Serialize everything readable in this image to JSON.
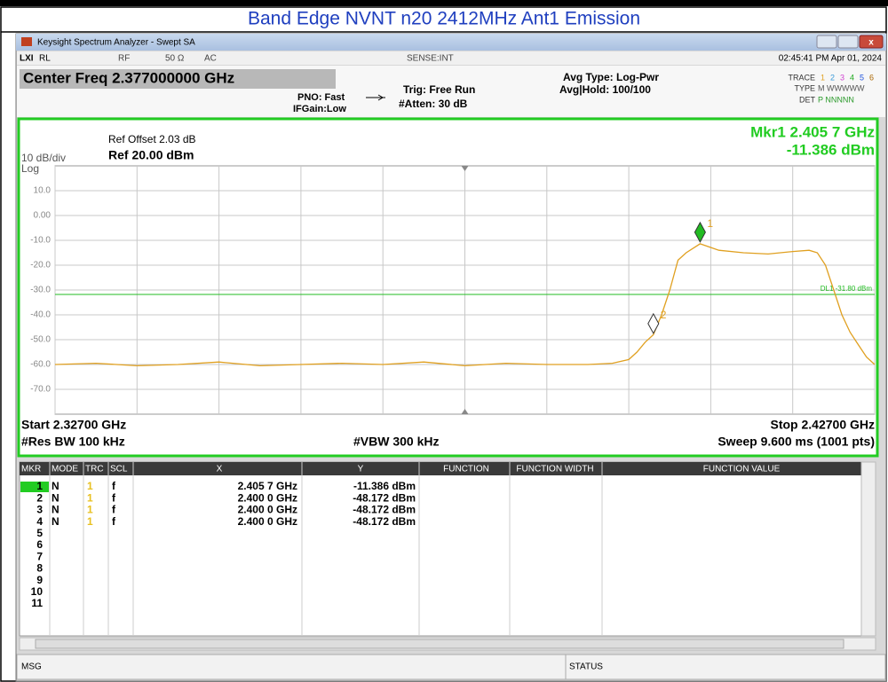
{
  "header": {
    "title": "Band Edge NVNT n20 2412MHz Ant1 Emission"
  },
  "window": {
    "title": "Keysight Spectrum Analyzer - Swept SA"
  },
  "status_bar": {
    "rl": "RL",
    "rf": "RF",
    "impedance": "50 Ω",
    "coupling": "AC",
    "sense": "SENSE:INT",
    "datetime": "02:45:41 PM Apr 01, 2024"
  },
  "settings": {
    "center_freq": "Center Freq 2.377000000 GHz",
    "pno": "PNO: Fast",
    "ifgain": "IFGain:Low",
    "trig": "Trig: Free Run",
    "atten": "#Atten: 30 dB",
    "avg_type": "Avg Type: Log-Pwr",
    "avg_hold": "Avg|Hold: 100/100",
    "trace_label": "TRACE",
    "trace_nums": [
      "1",
      "2",
      "3",
      "4",
      "5",
      "6"
    ],
    "type_label": "TYPE",
    "type_value": "M WWWWW",
    "det_label": "DET",
    "det_value": "P NNNNN"
  },
  "chart_data": {
    "type": "line",
    "ref_offset": "Ref Offset 2.03 dB",
    "ref_level": "Ref 20.00 dBm",
    "scale": "10 dB/div",
    "scale_type": "Log",
    "marker_readout": [
      "Mkr1 2.405 7 GHz",
      "-11.386 dBm"
    ],
    "x": [
      2.327,
      2.332,
      2.337,
      2.342,
      2.347,
      2.352,
      2.357,
      2.362,
      2.367,
      2.372,
      2.377,
      2.382,
      2.387,
      2.392,
      2.395,
      2.397,
      2.398,
      2.399,
      2.4,
      2.401,
      2.402,
      2.403,
      2.404,
      2.4057,
      2.408,
      2.411,
      2.414,
      2.417,
      2.419,
      2.42,
      2.421,
      2.422,
      2.423,
      2.424,
      2.425,
      2.426,
      2.427
    ],
    "values": [
      -60,
      -59.5,
      -60.5,
      -60,
      -59,
      -60.5,
      -60,
      -59.5,
      -60,
      -59,
      -60.5,
      -59.5,
      -60,
      -60,
      -59.5,
      -58,
      -55,
      -51,
      -48,
      -40,
      -30,
      -18,
      -15,
      -11.4,
      -14,
      -15,
      -15.5,
      -14.5,
      -14,
      -15,
      -20,
      -30,
      -40,
      -47,
      -52,
      -57,
      -60
    ],
    "color": "#e0a020",
    "xlim": [
      2.327,
      2.427
    ],
    "xticks": [
      2.327,
      2.337,
      2.347,
      2.357,
      2.367,
      2.377,
      2.387,
      2.397,
      2.407,
      2.417,
      2.427
    ],
    "ylim": [
      -80,
      20
    ],
    "yticks": [
      {
        "value": 10,
        "label": "10.0"
      },
      {
        "value": 0,
        "label": "0.00"
      },
      {
        "value": -10,
        "label": "-10.0"
      },
      {
        "value": -20,
        "label": "-20.0"
      },
      {
        "value": -30,
        "label": "-30.0"
      },
      {
        "value": -40,
        "label": "-40.0"
      },
      {
        "value": -50,
        "label": "-50.0"
      },
      {
        "value": -60,
        "label": "-60.0"
      },
      {
        "value": -70,
        "label": "-70.0"
      }
    ],
    "grid": true,
    "display_line": {
      "value": -31.8,
      "label": "DL1 -31.80 dBm",
      "color": "#22bb22"
    },
    "markers": [
      {
        "x": 2.4057,
        "y": -11.386,
        "label": "1",
        "color": "#22bb22"
      },
      {
        "x": 2.4,
        "y": -48.172,
        "label": "2",
        "color": "#ffffff"
      }
    ],
    "start": "Start 2.32700 GHz",
    "stop": "Stop 2.42700 GHz",
    "rbw": "#Res BW 100 kHz",
    "vbw": "#VBW 300 kHz",
    "sweep": "Sweep  9.600 ms (1001 pts)"
  },
  "marker_table": {
    "columns": [
      "MKR",
      "MODE",
      "TRC",
      "SCL",
      "X",
      "Y",
      "FUNCTION",
      "FUNCTION WIDTH",
      "FUNCTION VALUE"
    ],
    "rows": [
      [
        "1",
        "N",
        "1",
        "f",
        "2.405 7 GHz",
        "-11.386 dBm"
      ],
      [
        "2",
        "N",
        "1",
        "f",
        "2.400 0 GHz",
        "-48.172 dBm"
      ],
      [
        "3",
        "N",
        "1",
        "f",
        "2.400 0 GHz",
        "-48.172 dBm"
      ],
      [
        "4",
        "N",
        "1",
        "f",
        "2.400 0 GHz",
        "-48.172 dBm"
      ],
      [
        "5"
      ],
      [
        "6"
      ],
      [
        "7"
      ],
      [
        "8"
      ],
      [
        "9"
      ],
      [
        "10"
      ],
      [
        "11"
      ]
    ]
  },
  "footer": {
    "msg": "MSG",
    "status": "STATUS"
  }
}
